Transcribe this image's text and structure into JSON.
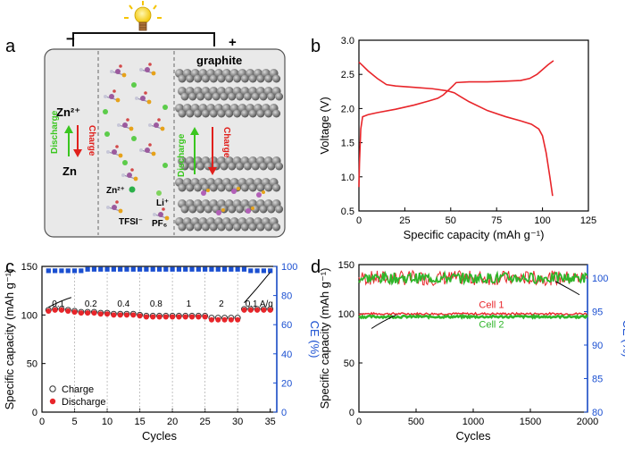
{
  "panel_labels": {
    "a": "a",
    "b": "b",
    "c": "c",
    "d": "d"
  },
  "schematic": {
    "minus": "−",
    "plus": "+",
    "graphite": "graphite",
    "zn_ion": "Zn²⁺",
    "zn": "Zn",
    "charge": "Charge",
    "discharge": "Discharge",
    "legend_zn": "Zn²⁺",
    "legend_li": "Li⁺",
    "legend_tfsi": "TFSI⁻",
    "legend_pf6": "PF₆",
    "colors": {
      "charge": "#e0201c",
      "discharge": "#3ac61f",
      "zn_dot": "#2bb04a",
      "li_dot": "#7fd35d"
    }
  },
  "chart_data": [
    {
      "id": "b",
      "type": "line",
      "xlabel": "Specific capacity   (mAh g⁻¹)",
      "ylabel": "Voltage (V)",
      "xlim": [
        0,
        125
      ],
      "ylim": [
        0.5,
        3.0
      ],
      "xticks": [
        "0",
        "25",
        "50",
        "75",
        "100",
        "125"
      ],
      "yticks": [
        "0.5",
        "1.0",
        "1.5",
        "2.0",
        "2.5",
        "3.0"
      ],
      "series": [
        {
          "color": "#e8252a",
          "x": [
            0,
            2,
            5,
            10,
            15,
            20,
            30,
            40,
            48,
            52,
            55,
            60,
            70,
            80,
            88,
            94,
            98,
            100,
            102,
            104,
            105.5
          ],
          "y": [
            2.68,
            2.63,
            2.55,
            2.44,
            2.35,
            2.33,
            2.31,
            2.29,
            2.26,
            2.23,
            2.18,
            2.1,
            1.97,
            1.88,
            1.82,
            1.77,
            1.7,
            1.6,
            1.35,
            1.0,
            0.72
          ]
        },
        {
          "color": "#e8252a",
          "x": [
            0,
            0.3,
            1,
            2,
            5,
            10,
            20,
            30,
            38,
            43,
            46,
            50,
            53,
            60,
            70,
            80,
            88,
            93,
            97,
            100,
            103,
            106
          ],
          "y": [
            0.85,
            1.2,
            1.7,
            1.88,
            1.91,
            1.94,
            1.99,
            2.05,
            2.11,
            2.15,
            2.2,
            2.3,
            2.38,
            2.39,
            2.39,
            2.4,
            2.41,
            2.44,
            2.5,
            2.57,
            2.64,
            2.7
          ]
        }
      ]
    },
    {
      "id": "c",
      "type": "scatter",
      "xlabel": "Cycles",
      "ylabel": "Specific capacity (mAh g⁻¹)",
      "y2label": "CE (%)",
      "xlim": [
        0,
        36
      ],
      "ylim": [
        0,
        150
      ],
      "y2lim": [
        0,
        100
      ],
      "xticks": [
        "0",
        "5",
        "10",
        "15",
        "20",
        "25",
        "30",
        "35"
      ],
      "yticks": [
        "0",
        "50",
        "100",
        "150"
      ],
      "y2ticks": [
        "0",
        "20",
        "40",
        "60",
        "80",
        "100"
      ],
      "rate_labels": [
        "0.1",
        "0.2",
        "0.4",
        "0.8",
        "1",
        "2",
        "0.1 A/g"
      ],
      "rate_dividers": [
        5,
        10,
        15,
        20,
        25,
        30
      ],
      "legend": [
        "Charge",
        "Discharge"
      ],
      "cycles": [
        1,
        2,
        3,
        4,
        5,
        6,
        7,
        8,
        9,
        10,
        11,
        12,
        13,
        14,
        15,
        16,
        17,
        18,
        19,
        20,
        21,
        22,
        23,
        24,
        25,
        26,
        27,
        28,
        29,
        30,
        31,
        32,
        33,
        34,
        35
      ],
      "charge": [
        105,
        106,
        106,
        105,
        104,
        103,
        103,
        103,
        102,
        102,
        101,
        101,
        101,
        101,
        100,
        99,
        99,
        99,
        99,
        99,
        99,
        99,
        99,
        99,
        99,
        97,
        97,
        97,
        97,
        97,
        106,
        106,
        106,
        106,
        106
      ],
      "discharge": [
        104,
        105,
        105,
        104,
        103,
        102,
        102,
        102,
        101,
        101,
        100,
        100,
        100,
        100,
        99,
        98,
        98,
        98,
        98,
        98,
        98,
        98,
        98,
        98,
        98,
        95,
        95,
        95,
        95,
        95,
        105,
        105,
        105,
        105,
        105
      ],
      "ce": [
        97,
        97,
        97,
        97,
        97,
        97,
        98,
        98,
        98,
        98,
        98,
        98,
        98,
        98,
        98,
        98,
        98,
        98,
        98,
        98,
        98,
        98,
        98,
        98,
        98,
        98,
        98,
        98,
        98,
        98,
        98,
        97,
        97,
        97,
        97
      ],
      "colors": {
        "charge": "#333333",
        "discharge": "#e8252a",
        "ce": "#1a4fd1",
        "axis2": "#1a4fd1"
      }
    },
    {
      "id": "d",
      "type": "line",
      "xlabel": "Cycles",
      "ylabel": "Specific capacity (mAh g⁻¹)",
      "y2label": "CE (%)",
      "xlim": [
        0,
        2000
      ],
      "ylim": [
        0,
        150
      ],
      "y2lim": [
        80,
        102
      ],
      "xticks": [
        "0",
        "500",
        "1000",
        "1500",
        "2000"
      ],
      "yticks": [
        "0",
        "50",
        "100",
        "150"
      ],
      "y2ticks": [
        "80",
        "85",
        "90",
        "95",
        "100"
      ],
      "series": [
        {
          "name": "Cell 1",
          "capacity": 100,
          "ce": 100,
          "color": "#e8252a"
        },
        {
          "name": "Cell 2",
          "capacity": 97,
          "ce": 100,
          "color": "#2fb52a"
        }
      ],
      "colors": {
        "axis2": "#1a4fd1"
      }
    }
  ]
}
